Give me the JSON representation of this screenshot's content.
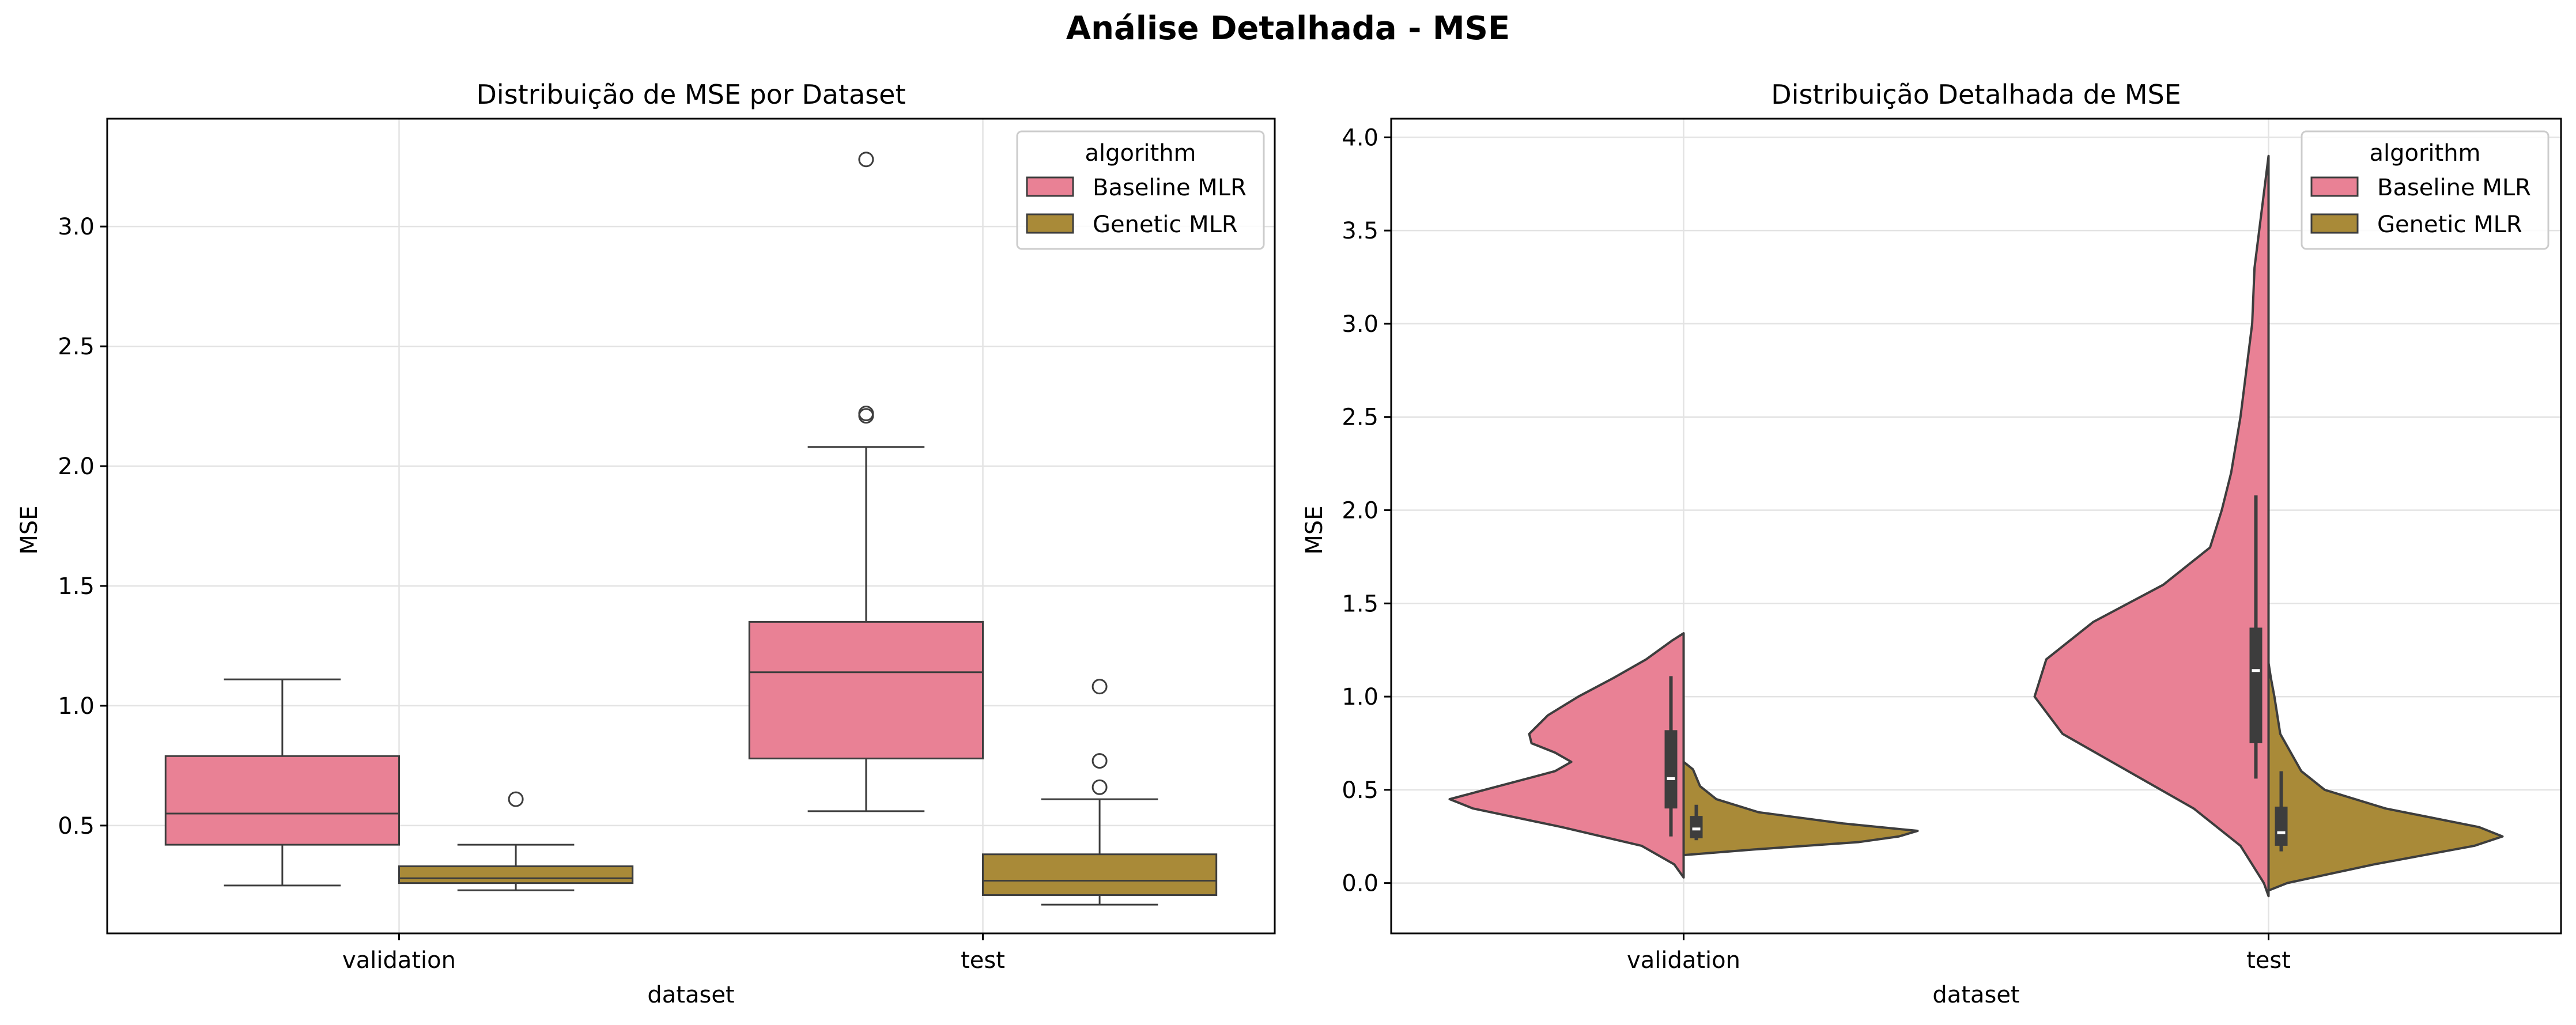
{
  "figure": {
    "suptitle": "Análise Detalhada - MSE"
  },
  "colors": {
    "baseline": "#e98195",
    "genetic": "#a98a38",
    "edge": "#3d3d3d",
    "grid": "#e3e3e3"
  },
  "chart_data": [
    {
      "type": "box",
      "title": "Distribuição de MSE por Dataset",
      "xlabel": "dataset",
      "ylabel": "MSE",
      "categories": [
        "validation",
        "test"
      ],
      "ylim": [
        0.05,
        3.45
      ],
      "yticks": [
        0.5,
        1.0,
        1.5,
        2.0,
        2.5,
        3.0
      ],
      "ytick_labels": [
        "0.5",
        "1.0",
        "1.5",
        "2.0",
        "2.5",
        "3.0"
      ],
      "grid": true,
      "legend": {
        "title": "algorithm",
        "placement": "top-right",
        "entries": [
          "Baseline MLR",
          "Genetic MLR"
        ]
      },
      "series": [
        {
          "name": "Baseline MLR",
          "boxes": [
            {
              "category": "validation",
              "whislo": 0.25,
              "q1": 0.42,
              "med": 0.55,
              "q3": 0.79,
              "whishi": 1.11,
              "fliers": []
            },
            {
              "category": "test",
              "whislo": 0.56,
              "q1": 0.78,
              "med": 1.14,
              "q3": 1.35,
              "whishi": 2.08,
              "fliers": [
                2.21,
                2.22,
                3.28
              ]
            }
          ]
        },
        {
          "name": "Genetic MLR",
          "boxes": [
            {
              "category": "validation",
              "whislo": 0.23,
              "q1": 0.26,
              "med": 0.28,
              "q3": 0.33,
              "whishi": 0.42,
              "fliers": [
                0.61
              ]
            },
            {
              "category": "test",
              "whislo": 0.17,
              "q1": 0.21,
              "med": 0.27,
              "q3": 0.38,
              "whishi": 0.61,
              "fliers": [
                0.66,
                0.77,
                1.08
              ]
            }
          ]
        }
      ]
    },
    {
      "type": "violin",
      "title": "Distribuição Detalhada de MSE",
      "xlabel": "dataset",
      "ylabel": "MSE",
      "categories": [
        "validation",
        "test"
      ],
      "ylim": [
        -0.27,
        4.1
      ],
      "yticks": [
        0.0,
        0.5,
        1.0,
        1.5,
        2.0,
        2.5,
        3.0,
        3.5,
        4.0
      ],
      "ytick_labels": [
        "0.0",
        "0.5",
        "1.0",
        "1.5",
        "2.0",
        "2.5",
        "3.0",
        "3.5",
        "4.0"
      ],
      "grid": true,
      "split": true,
      "legend": {
        "title": "algorithm",
        "placement": "top-right",
        "entries": [
          "Baseline MLR",
          "Genetic MLR"
        ]
      },
      "violins": [
        {
          "category": "validation",
          "series": "Baseline MLR",
          "side": "left",
          "density_y": [
            0.03,
            0.1,
            0.2,
            0.3,
            0.4,
            0.45,
            0.5,
            0.6,
            0.65,
            0.7,
            0.75,
            0.8,
            0.9,
            1.0,
            1.1,
            1.2,
            1.3,
            1.34
          ],
          "density_w": [
            0.0,
            0.04,
            0.18,
            0.52,
            0.9,
            1.0,
            0.85,
            0.55,
            0.48,
            0.55,
            0.65,
            0.66,
            0.58,
            0.45,
            0.3,
            0.16,
            0.05,
            0.0
          ],
          "whislo": 0.25,
          "q1": 0.4,
          "med": 0.56,
          "q3": 0.82,
          "whishi": 1.11
        },
        {
          "category": "validation",
          "series": "Genetic MLR",
          "side": "right",
          "density_y": [
            0.15,
            0.18,
            0.22,
            0.25,
            0.28,
            0.32,
            0.38,
            0.45,
            0.52,
            0.58,
            0.61,
            0.65
          ],
          "density_w": [
            0.0,
            0.3,
            0.75,
            0.92,
            1.0,
            0.68,
            0.32,
            0.14,
            0.07,
            0.05,
            0.04,
            0.0
          ],
          "whislo": 0.23,
          "q1": 0.24,
          "med": 0.29,
          "q3": 0.36,
          "whishi": 0.42
        },
        {
          "category": "test",
          "series": "Baseline MLR",
          "side": "left",
          "density_y": [
            -0.07,
            0.0,
            0.2,
            0.4,
            0.6,
            0.8,
            1.0,
            1.2,
            1.4,
            1.6,
            1.8,
            2.0,
            2.2,
            2.5,
            2.8,
            3.0,
            3.3,
            3.5,
            3.7,
            3.9
          ],
          "density_w": [
            0.0,
            0.02,
            0.12,
            0.32,
            0.6,
            0.88,
            1.0,
            0.95,
            0.75,
            0.45,
            0.25,
            0.2,
            0.16,
            0.12,
            0.09,
            0.07,
            0.06,
            0.04,
            0.02,
            0.0
          ],
          "whislo": 0.56,
          "q1": 0.75,
          "med": 1.14,
          "q3": 1.37,
          "whishi": 2.08
        },
        {
          "category": "test",
          "series": "Genetic MLR",
          "side": "right",
          "density_y": [
            -0.04,
            0.0,
            0.1,
            0.2,
            0.25,
            0.3,
            0.4,
            0.5,
            0.6,
            0.8,
            1.0,
            1.1,
            1.18
          ],
          "density_w": [
            0.0,
            0.08,
            0.45,
            0.88,
            1.0,
            0.9,
            0.5,
            0.24,
            0.14,
            0.05,
            0.025,
            0.01,
            0.0
          ],
          "whislo": 0.17,
          "q1": 0.2,
          "med": 0.27,
          "q3": 0.41,
          "whishi": 0.6
        }
      ]
    }
  ]
}
